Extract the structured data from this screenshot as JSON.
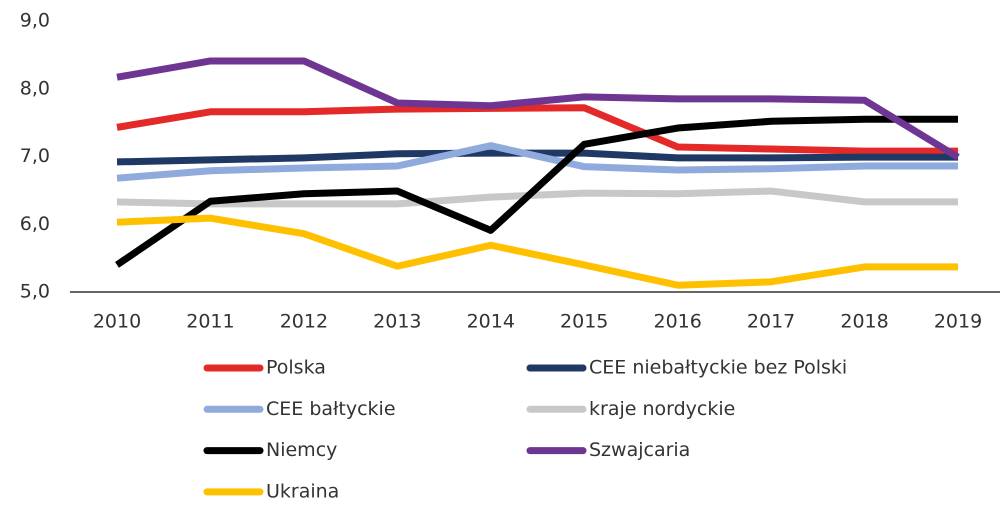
{
  "chart_data": {
    "type": "line",
    "categories": [
      "2010",
      "2011",
      "2012",
      "2013",
      "2014",
      "2015",
      "2016",
      "2017",
      "2018",
      "2019"
    ],
    "series": [
      {
        "name": "Polska",
        "color": "#e42a28",
        "values": [
          7.43,
          7.66,
          7.66,
          7.7,
          7.71,
          7.72,
          7.14,
          7.11,
          7.08,
          7.08
        ]
      },
      {
        "name": "CEE niebałtyckie bez Polski",
        "color": "#1f3864",
        "values": [
          6.92,
          6.95,
          6.98,
          7.04,
          7.05,
          7.05,
          6.98,
          6.98,
          6.99,
          6.99
        ]
      },
      {
        "name": "CEE bałtyckie",
        "color": "#8faadc",
        "values": [
          6.68,
          6.79,
          6.83,
          6.86,
          7.16,
          6.85,
          6.8,
          6.82,
          6.86,
          6.86
        ]
      },
      {
        "name": "kraje nordyckie",
        "color": "#c8c8c8",
        "values": [
          6.33,
          6.3,
          6.3,
          6.3,
          6.4,
          6.46,
          6.45,
          6.49,
          6.33,
          6.33
        ]
      },
      {
        "name": "Niemcy",
        "color": "#000000",
        "values": [
          5.4,
          6.34,
          6.45,
          6.49,
          5.91,
          7.18,
          7.42,
          7.52,
          7.55,
          7.55
        ]
      },
      {
        "name": "Szwajcaria",
        "color": "#6f3592",
        "values": [
          8.17,
          8.41,
          8.41,
          7.79,
          7.75,
          7.88,
          7.85,
          7.85,
          7.83,
          6.99
        ]
      },
      {
        "name": "Ukraina",
        "color": "#ffc000",
        "values": [
          6.03,
          6.09,
          5.86,
          5.38,
          5.69,
          5.4,
          5.1,
          5.15,
          5.37,
          5.37
        ]
      }
    ],
    "ylim": [
      5,
      9
    ],
    "yticks": [
      {
        "value": 5,
        "label": "5,0"
      },
      {
        "value": 6,
        "label": "6,0"
      },
      {
        "value": 7,
        "label": "7,0"
      },
      {
        "value": 8,
        "label": "8,0"
      },
      {
        "value": 9,
        "label": "9,0"
      }
    ],
    "grid": false,
    "legend": "bottom"
  }
}
